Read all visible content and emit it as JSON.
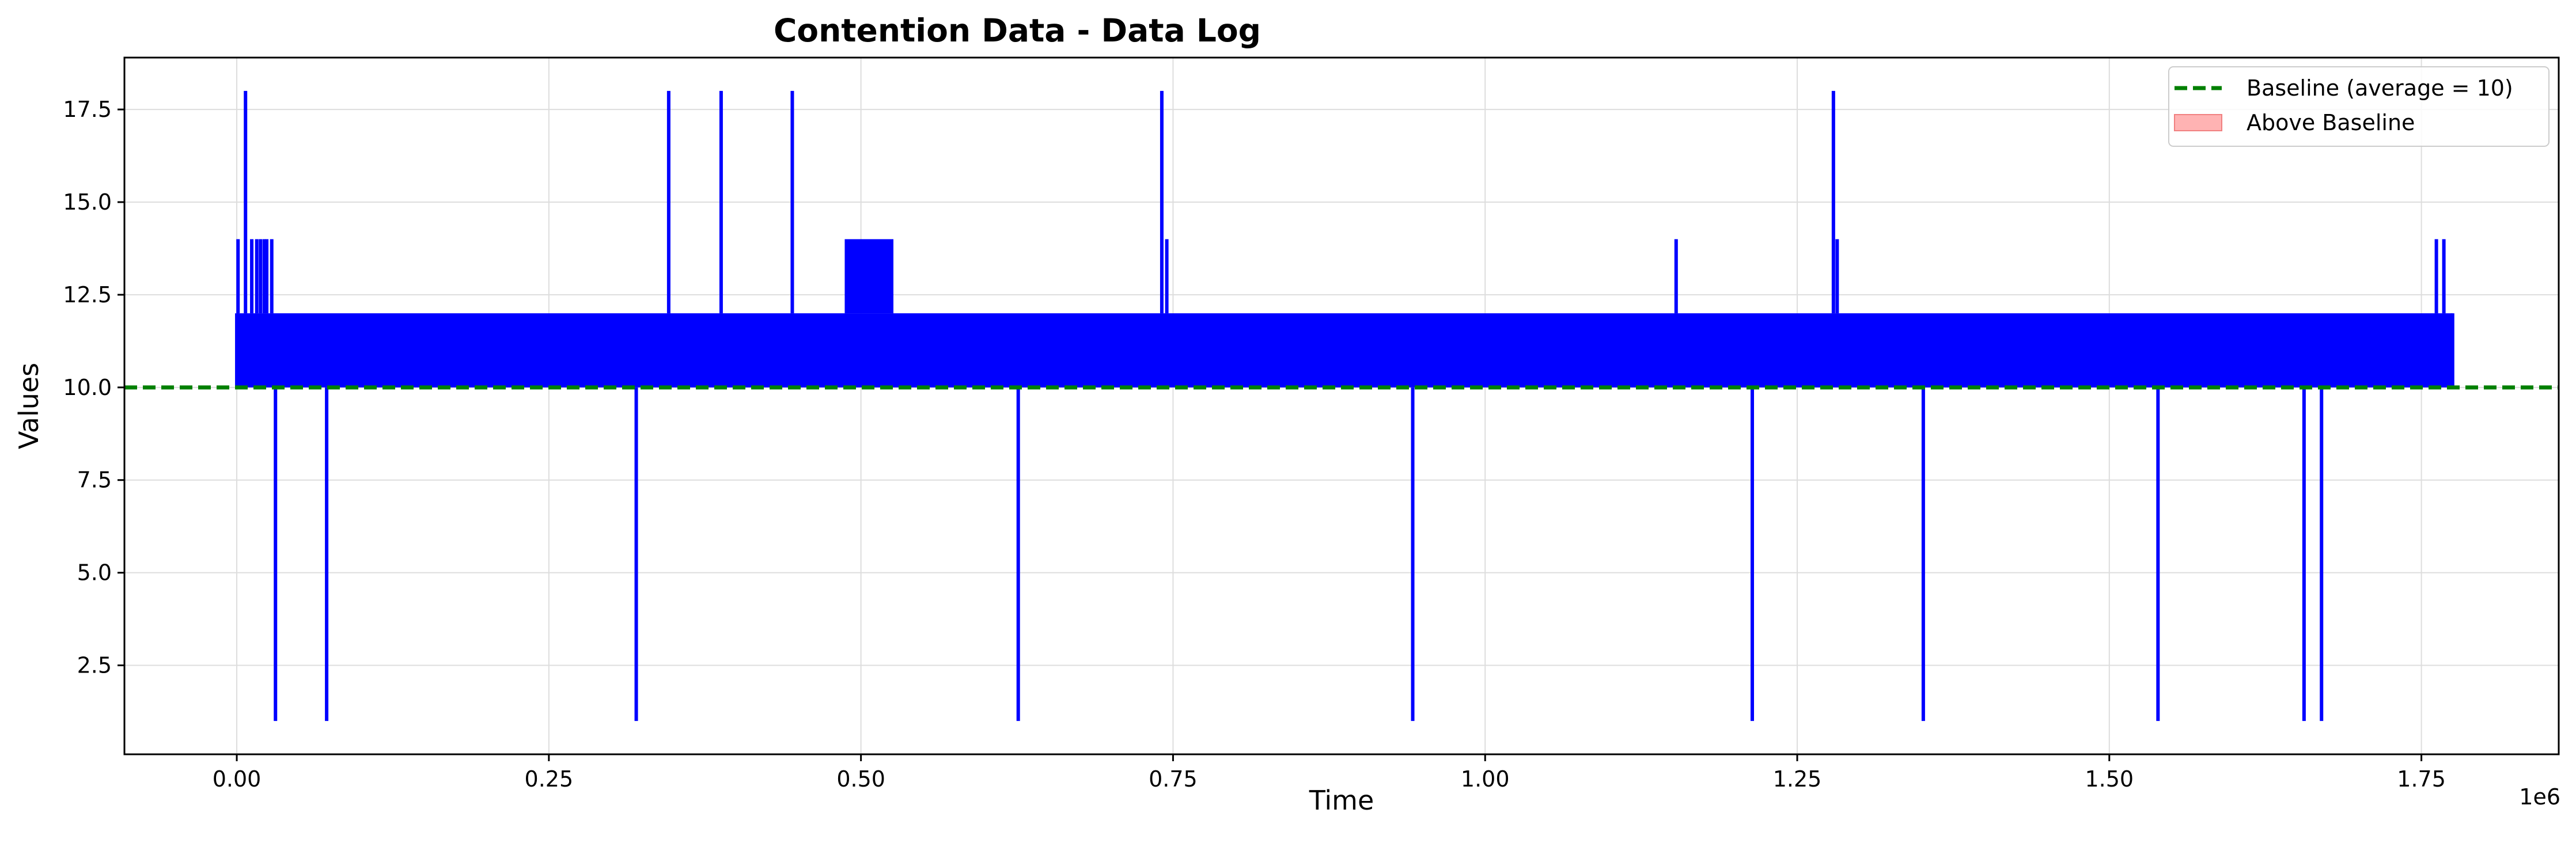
{
  "chart_data": {
    "type": "line",
    "title": "Contention Data - Data Log",
    "xlabel": "Time",
    "ylabel": "Values",
    "x_offset_label": "1e6",
    "xlim": [
      -0.09,
      1.86
    ],
    "ylim": [
      0.1,
      18.9
    ],
    "x_ticks": [
      0.0,
      0.25,
      0.5,
      0.75,
      1.0,
      1.25,
      1.5,
      1.75
    ],
    "x_tick_labels": [
      "0.00",
      "0.25",
      "0.50",
      "0.75",
      "1.00",
      "1.25",
      "1.50",
      "1.75"
    ],
    "y_ticks": [
      2.5,
      5.0,
      7.5,
      10.0,
      12.5,
      15.0,
      17.5
    ],
    "y_tick_labels": [
      "2.5",
      "5.0",
      "7.5",
      "10.0",
      "12.5",
      "15.0",
      "17.5"
    ],
    "grid": true,
    "legend_position": "top-right",
    "colors": {
      "series": "#0000ff",
      "baseline": "#008000",
      "above_fill": "#ffb3b3",
      "above_edge": "#f08080"
    },
    "series": [
      {
        "name": "",
        "base_band": {
          "x_start": 0.0,
          "x_end": 1.775,
          "low": 10,
          "high": 12
        },
        "spikes_up": [
          {
            "x": 0.001,
            "y": 14
          },
          {
            "x": 0.007,
            "y": 18
          },
          {
            "x": 0.012,
            "y": 14
          },
          {
            "x": 0.016,
            "y": 14
          },
          {
            "x": 0.019,
            "y": 14
          },
          {
            "x": 0.022,
            "y": 14
          },
          {
            "x": 0.024,
            "y": 14
          },
          {
            "x": 0.028,
            "y": 14
          },
          {
            "x": 0.346,
            "y": 18
          },
          {
            "x": 0.388,
            "y": 18
          },
          {
            "x": 0.445,
            "y": 18
          },
          {
            "x": 0.741,
            "y": 18
          },
          {
            "x": 0.745,
            "y": 14
          },
          {
            "x": 1.153,
            "y": 14
          },
          {
            "x": 1.279,
            "y": 18
          },
          {
            "x": 1.282,
            "y": 14
          },
          {
            "x": 1.762,
            "y": 14
          },
          {
            "x": 1.768,
            "y": 14
          }
        ],
        "dense_block": {
          "x_start": 0.487,
          "x_end": 0.526,
          "y": 14
        },
        "spikes_down": [
          {
            "x": 0.031,
            "y": 1
          },
          {
            "x": 0.072,
            "y": 1
          },
          {
            "x": 0.32,
            "y": 1
          },
          {
            "x": 0.626,
            "y": 1
          },
          {
            "x": 0.942,
            "y": 1
          },
          {
            "x": 1.214,
            "y": 1
          },
          {
            "x": 1.351,
            "y": 1
          },
          {
            "x": 1.539,
            "y": 1
          },
          {
            "x": 1.656,
            "y": 1
          },
          {
            "x": 1.67,
            "y": 1
          }
        ]
      }
    ],
    "baseline": {
      "label": "Baseline (average = 10)",
      "value": 10
    },
    "above_baseline_label": "Above Baseline"
  }
}
